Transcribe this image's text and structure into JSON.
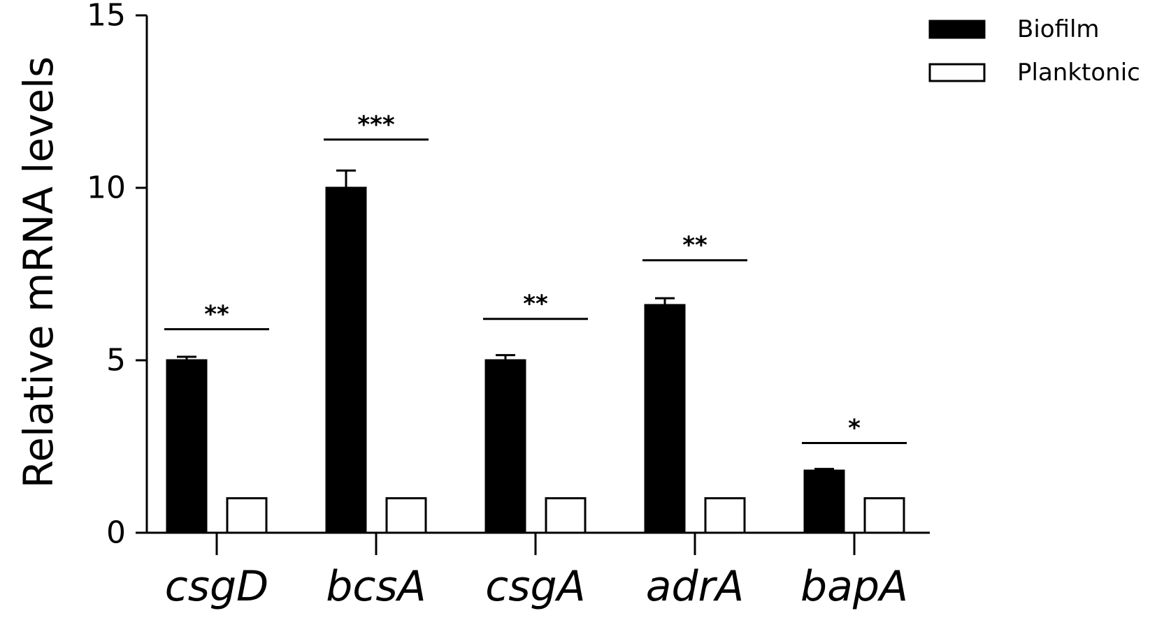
{
  "chart_data": {
    "type": "bar",
    "title": "",
    "xlabel": "",
    "ylabel": "Relative mRNA levels",
    "ylim": [
      0,
      15
    ],
    "yticks": [
      "0",
      "5",
      "10",
      "15"
    ],
    "categories": [
      "csgD",
      "bcsA",
      "csgA",
      "adrA",
      "bapA"
    ],
    "series": [
      {
        "name": "Biofilm",
        "values": [
          5.0,
          10.0,
          5.0,
          6.6,
          1.8
        ],
        "errors": [
          0.1,
          0.5,
          0.15,
          0.2,
          0.05
        ],
        "fill": "#000000"
      },
      {
        "name": "Planktonic",
        "values": [
          1.0,
          1.0,
          1.0,
          1.0,
          1.0
        ],
        "errors": [
          0,
          0,
          0,
          0,
          0
        ],
        "fill": "#ffffff"
      }
    ],
    "significance": [
      "**",
      "***",
      "**",
      "**",
      "*"
    ],
    "significance_y": [
      5.9,
      11.4,
      6.2,
      7.9,
      2.6
    ],
    "legend_position": "top-right",
    "grid": false
  }
}
